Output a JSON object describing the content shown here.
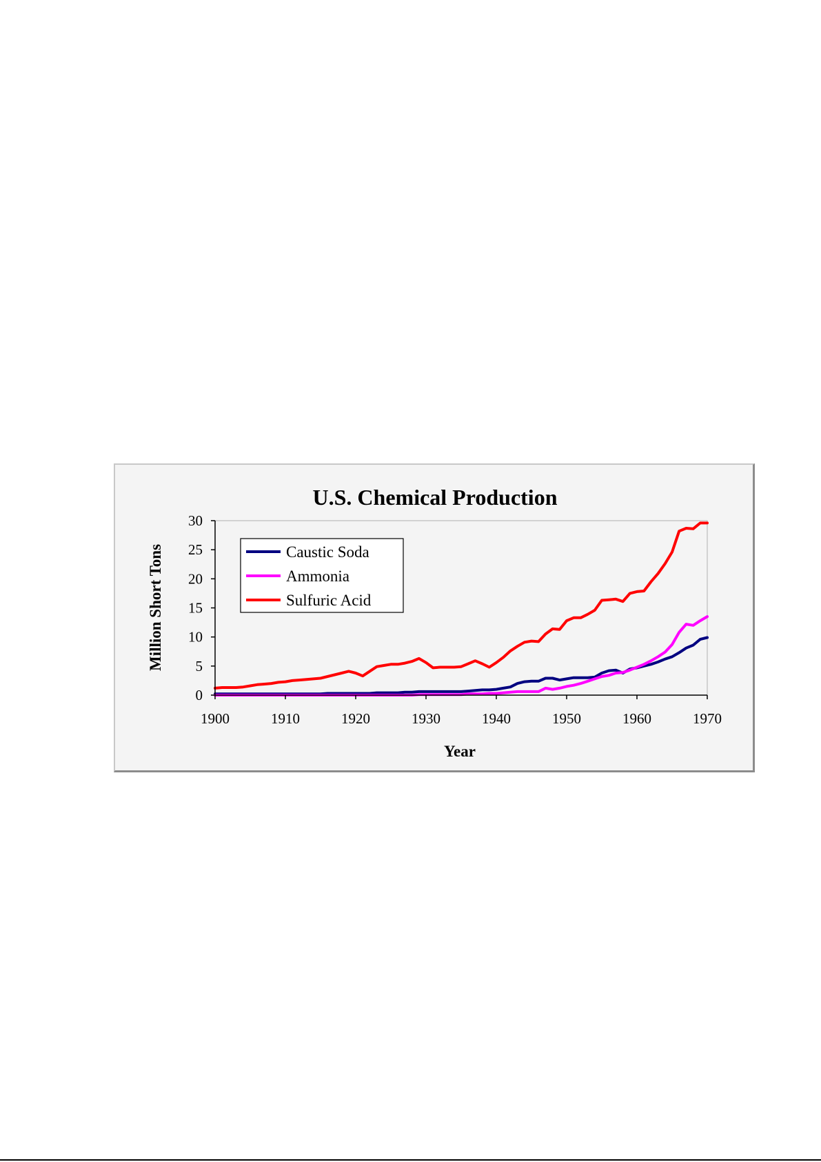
{
  "chart_data": {
    "type": "line",
    "title": "U.S. Chemical Production",
    "xlabel": "Year",
    "ylabel": "Million Short Tons",
    "xlim": [
      1900,
      1970
    ],
    "ylim": [
      0,
      30
    ],
    "xticks": [
      1900,
      1910,
      1920,
      1930,
      1940,
      1950,
      1960,
      1970
    ],
    "yticks": [
      0,
      5,
      10,
      15,
      20,
      25,
      30
    ],
    "grid": false,
    "legend_position": "top-left",
    "x": [
      1900,
      1901,
      1902,
      1903,
      1904,
      1905,
      1906,
      1907,
      1908,
      1909,
      1910,
      1911,
      1912,
      1913,
      1914,
      1915,
      1916,
      1917,
      1918,
      1919,
      1920,
      1921,
      1922,
      1923,
      1924,
      1925,
      1926,
      1927,
      1928,
      1929,
      1930,
      1931,
      1932,
      1933,
      1934,
      1935,
      1936,
      1937,
      1938,
      1939,
      1940,
      1941,
      1942,
      1943,
      1944,
      1945,
      1946,
      1947,
      1948,
      1949,
      1950,
      1951,
      1952,
      1953,
      1954,
      1955,
      1956,
      1957,
      1958,
      1959,
      1960,
      1961,
      1962,
      1963,
      1964,
      1965,
      1966,
      1967,
      1968,
      1969,
      1970
    ],
    "series": [
      {
        "name": "Caustic Soda",
        "color": "#000080",
        "values": [
          0.2,
          0.2,
          0.2,
          0.2,
          0.2,
          0.2,
          0.2,
          0.2,
          0.2,
          0.2,
          0.2,
          0.2,
          0.2,
          0.2,
          0.2,
          0.2,
          0.3,
          0.3,
          0.3,
          0.3,
          0.3,
          0.3,
          0.3,
          0.4,
          0.4,
          0.4,
          0.4,
          0.5,
          0.5,
          0.6,
          0.6,
          0.6,
          0.6,
          0.6,
          0.6,
          0.6,
          0.7,
          0.8,
          0.9,
          0.9,
          1.0,
          1.2,
          1.4,
          2.0,
          2.3,
          2.4,
          2.4,
          2.9,
          2.9,
          2.6,
          2.8,
          3.0,
          3.0,
          3.0,
          3.1,
          3.8,
          4.2,
          4.3,
          3.8,
          4.5,
          4.7,
          5.0,
          5.3,
          5.7,
          6.2,
          6.6,
          7.3,
          8.1,
          8.6,
          9.6,
          9.9
        ]
      },
      {
        "name": "Ammonia",
        "color": "#ff00ff",
        "values": [
          0,
          0,
          0,
          0,
          0,
          0,
          0,
          0,
          0,
          0,
          0,
          0,
          0,
          0,
          0,
          0,
          0,
          0,
          0,
          0,
          0,
          0,
          0,
          0,
          0,
          0,
          0,
          0,
          0,
          0.1,
          0.1,
          0.1,
          0.1,
          0.1,
          0.1,
          0.1,
          0.2,
          0.2,
          0.2,
          0.3,
          0.3,
          0.4,
          0.5,
          0.6,
          0.6,
          0.6,
          0.6,
          1.2,
          1.0,
          1.2,
          1.5,
          1.7,
          2.0,
          2.4,
          2.8,
          3.2,
          3.4,
          3.8,
          3.9,
          4.3,
          4.8,
          5.3,
          5.9,
          6.6,
          7.4,
          8.7,
          10.8,
          12.2,
          12.0,
          12.8,
          13.5
        ]
      },
      {
        "name": "Sulfuric Acid",
        "color": "#ff0000",
        "values": [
          1.2,
          1.3,
          1.3,
          1.3,
          1.4,
          1.6,
          1.8,
          1.9,
          2.0,
          2.2,
          2.3,
          2.5,
          2.6,
          2.7,
          2.8,
          2.9,
          3.2,
          3.5,
          3.8,
          4.1,
          3.8,
          3.3,
          4.1,
          4.9,
          5.1,
          5.3,
          5.3,
          5.5,
          5.8,
          6.3,
          5.6,
          4.7,
          4.8,
          4.8,
          4.8,
          4.9,
          5.4,
          5.9,
          5.4,
          4.8,
          5.6,
          6.5,
          7.6,
          8.4,
          9.1,
          9.3,
          9.2,
          10.5,
          11.4,
          11.3,
          12.8,
          13.3,
          13.3,
          13.9,
          14.6,
          16.3,
          16.4,
          16.5,
          16.1,
          17.5,
          17.8,
          17.9,
          19.5,
          20.9,
          22.6,
          24.6,
          28.2,
          28.7,
          28.6,
          29.6,
          29.6
        ]
      }
    ]
  }
}
